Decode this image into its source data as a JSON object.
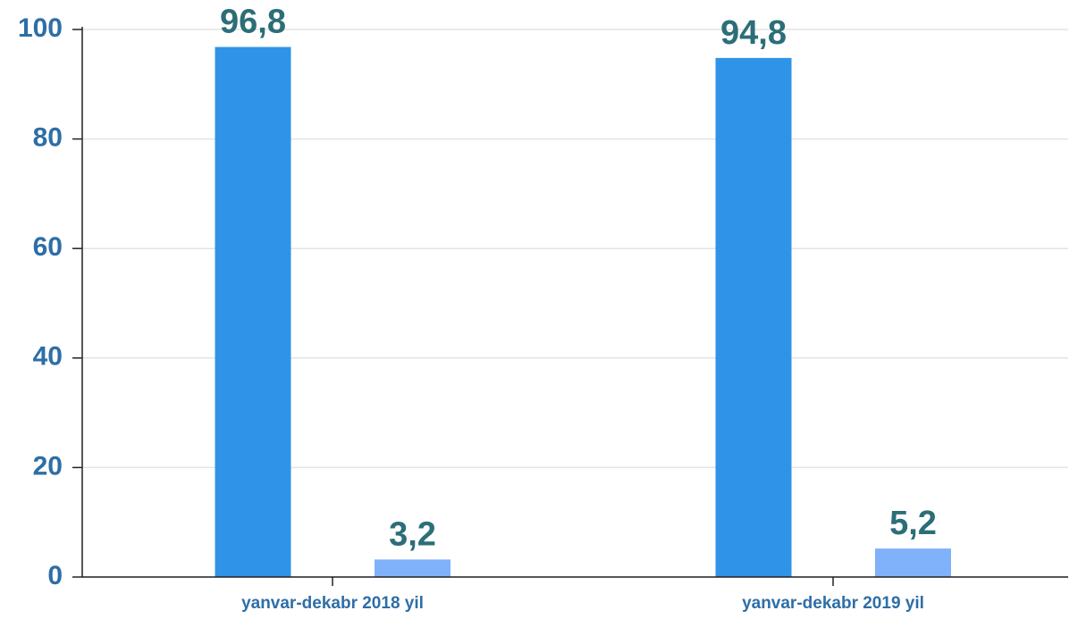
{
  "chart_data": {
    "type": "bar",
    "categories": [
      "yanvar-dekabr 2018 yil",
      "yanvar-dekabr 2019 yil"
    ],
    "series": [
      {
        "color": "#2f94e8",
        "values": [
          96.8,
          94.8
        ],
        "value_labels": [
          "96,8",
          "94,8"
        ]
      },
      {
        "color": "#80b1fb",
        "values": [
          3.2,
          5.2
        ],
        "value_labels": [
          "3,2",
          "5,2"
        ]
      }
    ],
    "ylim": [
      0,
      100
    ],
    "yticks": [
      0,
      20,
      40,
      60,
      80,
      100
    ],
    "grid": true
  }
}
